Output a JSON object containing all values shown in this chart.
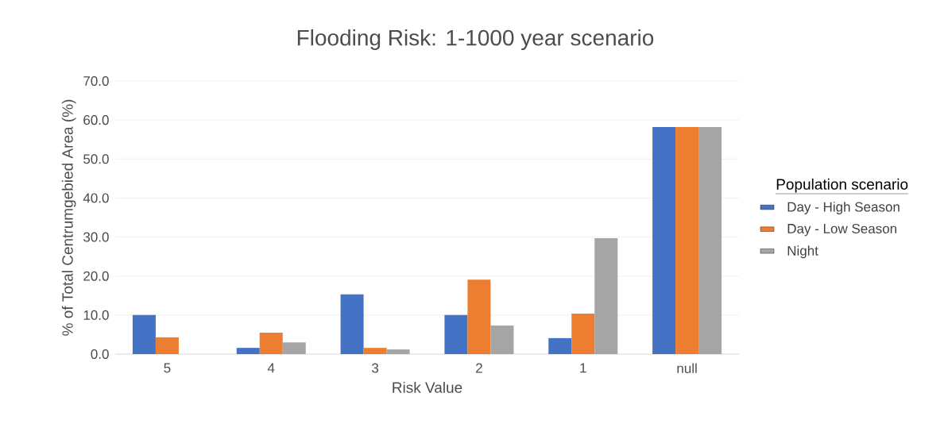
{
  "chart_data": {
    "type": "bar",
    "title": "Flooding Risk: 1-1000 year scenario",
    "xlabel": "Risk Value",
    "ylabel": "% of Total Centrumgebied Area (%)",
    "legend_title": "Population scenario",
    "categories": [
      "5",
      "4",
      "3",
      "2",
      "1",
      "null"
    ],
    "series": [
      {
        "name": "Day - High Season",
        "color": "#4472c4",
        "values": [
          10.0,
          1.6,
          15.3,
          10.0,
          4.1,
          58.2
        ]
      },
      {
        "name": "Day - Low Season",
        "color": "#ed7d31",
        "values": [
          4.3,
          5.5,
          1.6,
          19.1,
          10.4,
          58.2
        ]
      },
      {
        "name": "Night",
        "color": "#a5a5a5",
        "values": [
          0,
          3.0,
          1.2,
          7.3,
          29.7,
          58.2
        ]
      }
    ],
    "ylim": [
      0,
      70
    ],
    "yticks": [
      {
        "value": 0,
        "label": "0.0"
      },
      {
        "value": 10,
        "label": "10.0"
      },
      {
        "value": 20,
        "label": "20.0"
      },
      {
        "value": 30,
        "label": "30.0"
      },
      {
        "value": 40,
        "label": "40.0"
      },
      {
        "value": 50,
        "label": "50.0"
      },
      {
        "value": 60,
        "label": "60.0"
      },
      {
        "value": 70,
        "label": "70.0"
      }
    ],
    "grid": "y",
    "legend": "right"
  }
}
